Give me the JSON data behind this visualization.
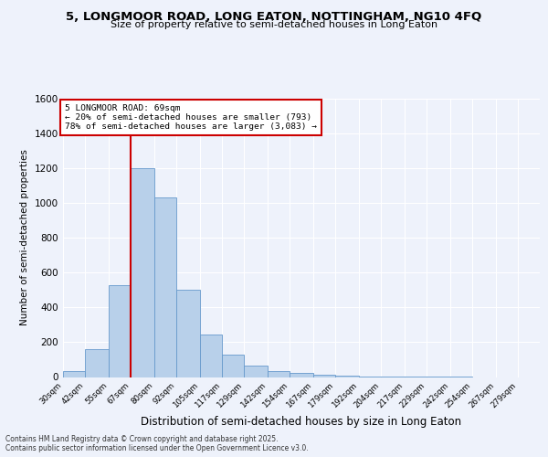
{
  "title_line1": "5, LONGMOOR ROAD, LONG EATON, NOTTINGHAM, NG10 4FQ",
  "title_line2": "Size of property relative to semi-detached houses in Long Eaton",
  "xlabel": "Distribution of semi-detached houses by size in Long Eaton",
  "ylabel": "Number of semi-detached properties",
  "bin_labels": [
    "30sqm",
    "42sqm",
    "55sqm",
    "67sqm",
    "80sqm",
    "92sqm",
    "105sqm",
    "117sqm",
    "129sqm",
    "142sqm",
    "154sqm",
    "167sqm",
    "179sqm",
    "192sqm",
    "204sqm",
    "217sqm",
    "229sqm",
    "242sqm",
    "254sqm",
    "267sqm",
    "279sqm"
  ],
  "bin_left_edges": [
    30,
    42,
    55,
    67,
    80,
    92,
    105,
    117,
    129,
    142,
    154,
    167,
    179,
    192,
    204,
    217,
    229,
    242,
    254,
    267,
    279
  ],
  "bar_heights": [
    35,
    160,
    525,
    1200,
    1030,
    500,
    245,
    130,
    65,
    35,
    25,
    15,
    10,
    5,
    3,
    2,
    1,
    1,
    0,
    0
  ],
  "bar_color": "#b8d0ea",
  "bar_edge_color": "#6699cc",
  "property_line_x": 67,
  "vline_color": "#cc0000",
  "annotation_title": "5 LONGMOOR ROAD: 69sqm",
  "annotation_line2": "← 20% of semi-detached houses are smaller (793)",
  "annotation_line3": "78% of semi-detached houses are larger (3,083) →",
  "annotation_box_color": "#cc0000",
  "ylim": [
    0,
    1600
  ],
  "yticks": [
    0,
    200,
    400,
    600,
    800,
    1000,
    1200,
    1400,
    1600
  ],
  "background_color": "#eef2fb",
  "footer_line1": "Contains HM Land Registry data © Crown copyright and database right 2025.",
  "footer_line2": "Contains public sector information licensed under the Open Government Licence v3.0."
}
